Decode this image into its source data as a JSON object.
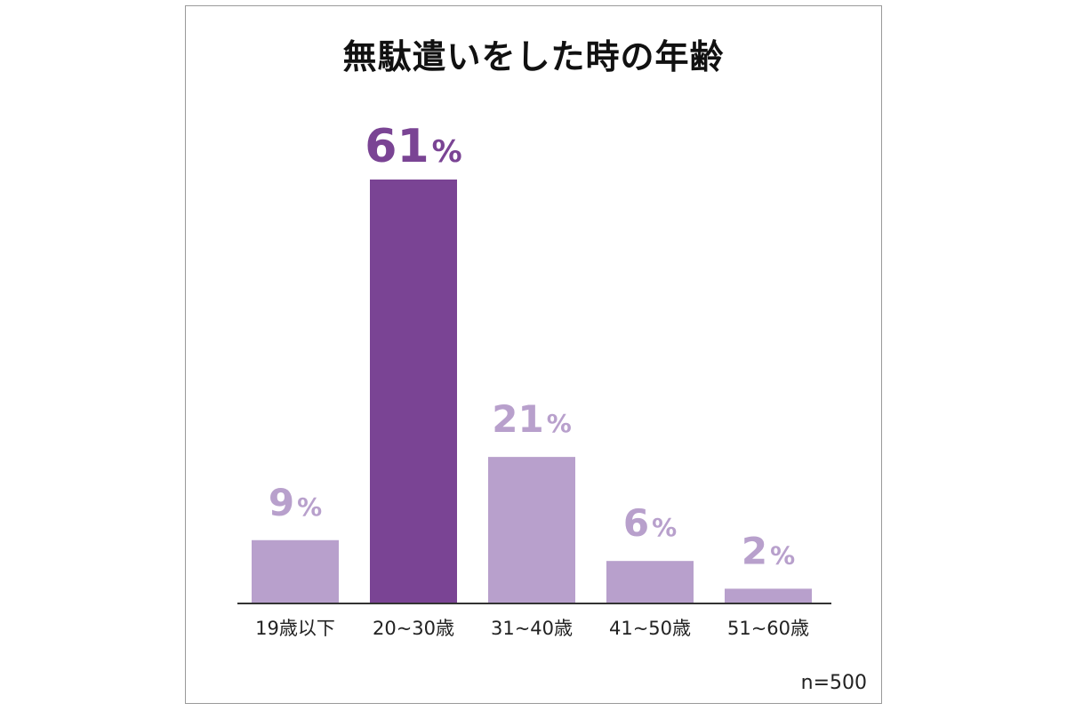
{
  "chart_data": {
    "type": "bar",
    "title": "無駄遣いをした時の年齢",
    "categories": [
      "19歳以下",
      "20~30歳",
      "31~40歳",
      "41~50歳",
      "51~60歳"
    ],
    "values": [
      9,
      61,
      21,
      6,
      2
    ],
    "value_suffix": "%",
    "highlight_index": 1,
    "colors": {
      "bar": "#b8a0cc",
      "highlight": "#7a4494",
      "label": "#b8a0cc",
      "highlight_label": "#7a4494",
      "axis": "#333333"
    },
    "ylim": [
      0,
      61
    ],
    "grid": false,
    "note": "n=500"
  }
}
